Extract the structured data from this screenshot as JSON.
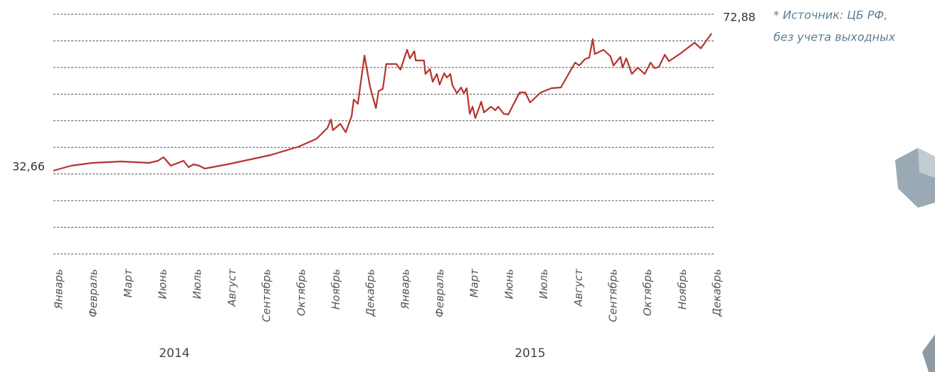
{
  "chart_data": {
    "type": "line",
    "categories": [
      "Январь",
      "Февраль",
      "Март",
      "Июнь",
      "Июль",
      "Август",
      "Сентябрь",
      "Октябрь",
      "Ноябрь",
      "Декабрь",
      "Январь",
      "Февраль",
      "Март",
      "Июнь",
      "Июль",
      "Август",
      "Сентябрь",
      "Октябрь",
      "Ноябрь",
      "Декабрь"
    ],
    "years": [
      "2014",
      "2015"
    ],
    "note": [
      "* Источник: ЦБ РФ,",
      "без учета выходных"
    ],
    "xlim": [
      0,
      19
    ],
    "ylim": [
      8.28,
      78.51
    ],
    "series": [
      {
        "color": "#b5332e",
        "x": [
          0,
          0.51,
          1.13,
          1.95,
          2.77,
          3.02,
          3.18,
          3.39,
          3.76,
          3.9,
          4.05,
          4.21,
          4.37,
          5.03,
          6.27,
          7.09,
          7.6,
          7.91,
          8.01,
          8.07,
          8.28,
          8.44,
          8.61,
          8.67,
          8.79,
          8.98,
          9.14,
          9.31,
          9.39,
          9.51,
          9.61,
          9.9,
          10.02,
          10.21,
          10.29,
          10.42,
          10.46,
          10.7,
          10.74,
          10.87,
          10.95,
          11.07,
          11.15,
          11.28,
          11.36,
          11.46,
          11.52,
          11.65,
          11.77,
          11.85,
          11.93,
          12.02,
          12.1,
          12.18,
          12.35,
          12.43,
          12.63,
          12.76,
          12.84,
          13.0,
          13.13,
          13.46,
          13.62,
          13.76,
          14.07,
          14.38,
          14.65,
          15.06,
          15.18,
          15.35,
          15.47,
          15.57,
          15.63,
          15.88,
          16.08,
          16.17,
          16.37,
          16.43,
          16.54,
          16.7,
          16.87,
          17.07,
          17.24,
          17.36,
          17.48,
          17.65,
          17.77,
          18.08,
          18.51,
          18.69,
          19
        ],
        "values": [
          32.66,
          34.12,
          34.95,
          35.37,
          34.95,
          35.58,
          36.62,
          34.12,
          35.58,
          33.7,
          34.54,
          34.12,
          33.29,
          34.54,
          37.24,
          39.75,
          42.04,
          45.16,
          47.66,
          44.54,
          46.41,
          43.91,
          48.71,
          53.5,
          52.25,
          66.42,
          57.25,
          51.0,
          56.0,
          56.63,
          63.92,
          63.92,
          62.25,
          68.09,
          65.59,
          67.67,
          64.96,
          64.96,
          61.0,
          62.46,
          58.71,
          61.0,
          57.88,
          61.21,
          59.96,
          61.0,
          57.67,
          55.38,
          57.04,
          55.38,
          56.83,
          49.33,
          51.42,
          48.08,
          52.87,
          49.75,
          51.42,
          50.37,
          51.42,
          49.33,
          49.12,
          55.58,
          55.58,
          52.67,
          55.58,
          56.83,
          57.04,
          64.34,
          63.5,
          65.38,
          65.8,
          71.21,
          66.84,
          68.09,
          66.21,
          63.5,
          66.0,
          62.88,
          65.59,
          61.0,
          62.88,
          61.0,
          64.34,
          62.67,
          63.09,
          66.63,
          64.75,
          66.84,
          70.17,
          68.51,
          72.88
        ],
        "value_labels": [
          "32,66",
          null,
          null,
          null,
          null,
          null,
          null,
          null,
          null,
          null,
          null,
          null,
          null,
          null,
          null,
          null,
          null,
          null,
          null,
          null,
          null,
          null,
          null,
          null,
          null,
          null,
          null,
          null,
          null,
          null,
          null,
          null,
          null,
          null,
          null,
          null,
          null,
          null,
          null,
          null,
          null,
          null,
          null,
          null,
          null,
          null,
          null,
          null,
          null,
          null,
          null,
          null,
          null,
          null,
          null,
          null,
          null,
          null,
          null,
          null,
          null,
          null,
          null,
          null,
          null,
          null,
          null,
          null,
          null,
          null,
          null,
          null,
          null,
          null,
          null,
          null,
          null,
          null,
          null,
          null,
          null,
          null,
          null,
          null,
          null,
          null,
          null,
          null,
          null,
          null,
          "72,88"
        ]
      }
    ]
  }
}
